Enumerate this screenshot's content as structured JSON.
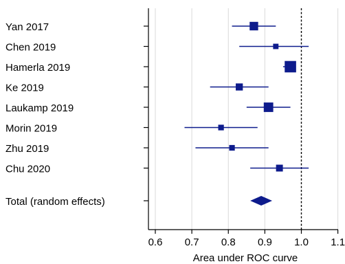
{
  "chart_data": {
    "type": "forest",
    "xlabel": "Area under ROC curve",
    "xlim": [
      0.58,
      1.1
    ],
    "xticks": [
      "0.6",
      "0.7",
      "0.8",
      "0.9",
      "1.0",
      "1.1"
    ],
    "tick_values": [
      0.6,
      0.7,
      0.8,
      0.9,
      1.0,
      1.1
    ],
    "reference_line": 1.0,
    "grid": "vertical",
    "studies": [
      {
        "label": "Yan 2017",
        "estimate": 0.87,
        "lower": 0.81,
        "upper": 0.93,
        "weight": 1.2
      },
      {
        "label": "Chen 2019",
        "estimate": 0.93,
        "lower": 0.83,
        "upper": 1.02,
        "weight": 0.55
      },
      {
        "label": "Hamerla 2019",
        "estimate": 0.97,
        "lower": 0.95,
        "upper": 0.985,
        "weight": 1.8
      },
      {
        "label": "Ke 2019",
        "estimate": 0.83,
        "lower": 0.75,
        "upper": 0.91,
        "weight": 0.9
      },
      {
        "label": "Laukamp 2019",
        "estimate": 0.91,
        "lower": 0.85,
        "upper": 0.97,
        "weight": 1.4
      },
      {
        "label": "Morin 2019",
        "estimate": 0.78,
        "lower": 0.68,
        "upper": 0.88,
        "weight": 0.6
      },
      {
        "label": "Zhu 2019",
        "estimate": 0.81,
        "lower": 0.71,
        "upper": 0.91,
        "weight": 0.6
      },
      {
        "label": "Chu 2020",
        "estimate": 0.94,
        "lower": 0.86,
        "upper": 1.02,
        "weight": 0.85
      }
    ],
    "pooled": {
      "label": "Total (random effects)",
      "estimate": 0.89,
      "lower": 0.86,
      "upper": 0.92
    },
    "colors": {
      "marker": "#0d1b8c",
      "axis": "#000000",
      "grid": "#d9d9d9",
      "reference": "#000000"
    }
  }
}
